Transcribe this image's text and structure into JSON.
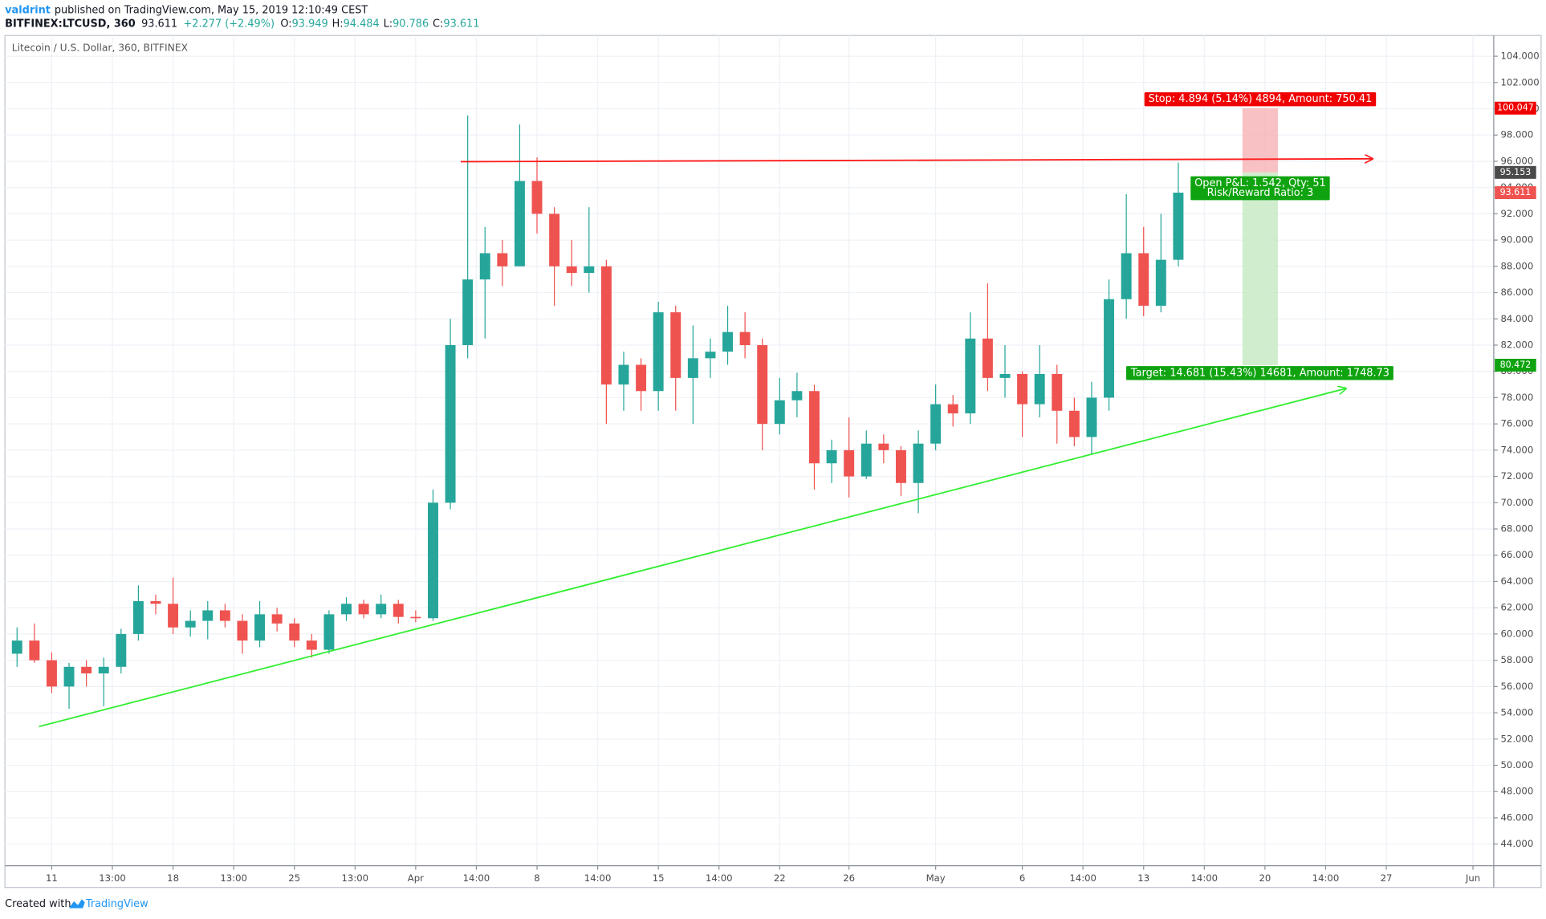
{
  "header": {
    "author": "valdrint",
    "published": "published on TradingView.com, May 15, 2019 12:10:49 CEST",
    "symbol": "BITFINEX:LTCUSD, 360",
    "last": "93.611",
    "change": "+2.277 (+2.49%)",
    "ohlc": [
      {
        "label": "O:",
        "value": "93.949"
      },
      {
        "label": "H:",
        "value": "94.484"
      },
      {
        "label": "L:",
        "value": "90.786"
      },
      {
        "label": "C:",
        "value": "93.611"
      }
    ]
  },
  "footer": {
    "created": "Created with",
    "brand": "TradingView"
  },
  "chart_data": {
    "type": "candlestick",
    "title": "Litecoin / U.S. Dollar, 360, BITFINEX",
    "colors": {
      "up": "#26a69a",
      "down": "#ef5350"
    },
    "x": [
      9,
      10,
      11,
      12,
      13,
      14,
      15,
      16,
      17,
      18,
      19,
      20,
      21,
      22,
      23,
      24,
      25,
      26,
      27,
      28,
      29,
      30,
      31,
      32,
      33,
      34,
      35,
      36,
      37,
      38,
      39,
      40,
      41,
      42,
      43,
      44,
      45,
      46,
      47,
      48,
      49,
      50,
      51,
      52,
      53,
      54,
      55,
      56,
      57,
      58,
      59,
      60,
      61,
      62,
      63,
      64,
      65,
      66,
      67,
      68,
      69,
      70,
      71,
      72,
      73,
      74,
      75,
      76
    ],
    "candles": {
      "open": [
        58.5,
        59.5,
        58,
        56,
        57.5,
        57,
        57.5,
        60,
        62.5,
        62.3,
        60.5,
        61,
        61.8,
        61,
        59.5,
        61.5,
        60.8,
        59.5,
        58.8,
        61.5,
        62.3,
        61.5,
        62.3,
        61.3,
        61.2,
        70,
        82,
        87,
        89,
        88,
        94.5,
        92,
        88,
        87.5,
        88,
        79,
        80.5,
        78.5,
        84.5,
        79.5,
        81,
        81.5,
        83,
        82,
        76,
        77.8,
        78.5,
        73,
        74,
        72,
        74.5,
        74,
        71.5,
        74.5,
        77.5,
        76.8,
        82.5,
        79.5,
        79.8,
        77.5,
        79.8,
        77,
        75,
        78,
        85.5,
        89,
        85,
        88.5
      ],
      "high": [
        60.5,
        60.8,
        58.6,
        57.8,
        58,
        58.2,
        60.4,
        63.7,
        63,
        64.3,
        61.8,
        62.5,
        62.3,
        61.5,
        62.5,
        62,
        61.2,
        60,
        61.8,
        62.8,
        62.6,
        63,
        62.6,
        61.8,
        71,
        84,
        99.5,
        91,
        90,
        98.8,
        96.3,
        92.5,
        90,
        92.5,
        88.5,
        81.5,
        81,
        85.3,
        85,
        83.5,
        82.5,
        85,
        84.5,
        82.5,
        79.5,
        79.9,
        79,
        74.8,
        76.5,
        75.5,
        75.2,
        74.3,
        75.5,
        79,
        78.2,
        84.5,
        86.7,
        82,
        80,
        82,
        80.5,
        78,
        79.2,
        87,
        93.5,
        91,
        92,
        95.9
      ],
      "low": [
        57.5,
        57.8,
        55.5,
        54.3,
        56,
        54.5,
        57,
        59.5,
        61.5,
        60,
        59.8,
        59.6,
        60.5,
        58.5,
        59,
        60.2,
        59,
        58.2,
        58.5,
        61,
        61.2,
        61.2,
        60.8,
        60.9,
        61,
        69.5,
        81,
        82.5,
        86.5,
        88,
        90.5,
        85,
        86.5,
        86,
        76,
        77,
        77,
        77,
        77,
        76,
        79.5,
        80.5,
        81,
        74,
        75.2,
        76.5,
        71,
        71.5,
        70.4,
        71.8,
        73,
        70.5,
        69.2,
        74,
        75.8,
        76,
        78.5,
        78,
        75,
        76.5,
        74.5,
        74.3,
        73.7,
        77,
        84,
        84.2,
        84.5,
        88
      ],
      "close": [
        59.5,
        58,
        56,
        57.5,
        57,
        57.5,
        60,
        62.5,
        62.3,
        60.5,
        61,
        61.8,
        61,
        59.5,
        61.5,
        60.8,
        59.5,
        58.8,
        61.5,
        62.3,
        61.5,
        62.3,
        61.3,
        61.2,
        70,
        82,
        87,
        89,
        88,
        94.5,
        92,
        88,
        87.5,
        88,
        79,
        80.5,
        78.5,
        84.5,
        79.5,
        81,
        81.5,
        83,
        82,
        76,
        77.8,
        78.5,
        73,
        74,
        72,
        74.5,
        74,
        71.5,
        74.5,
        77.5,
        76.8,
        82.5,
        79.5,
        79.8,
        77.5,
        79.8,
        77,
        75,
        78,
        85.5,
        89,
        85,
        88.5,
        93.611
      ]
    },
    "xlim": [
      8.3,
      94.2
    ],
    "ylim": [
      42.35,
      105.58
    ],
    "xticks": [
      {
        "value": 11,
        "label": "11"
      },
      {
        "value": 14.5,
        "label": "13:00"
      },
      {
        "value": 18,
        "label": "18"
      },
      {
        "value": 21.5,
        "label": "13:00"
      },
      {
        "value": 25,
        "label": "25"
      },
      {
        "value": 28.5,
        "label": "13:00"
      },
      {
        "value": 32,
        "label": "Apr"
      },
      {
        "value": 35.5,
        "label": "14:00"
      },
      {
        "value": 39,
        "label": "8"
      },
      {
        "value": 42.5,
        "label": "14:00"
      },
      {
        "value": 46,
        "label": "15"
      },
      {
        "value": 49.5,
        "label": "14:00"
      },
      {
        "value": 53,
        "label": "22"
      },
      {
        "value": 57,
        "label": "26"
      },
      {
        "value": 62,
        "label": "May"
      },
      {
        "value": 67,
        "label": "6"
      },
      {
        "value": 70.5,
        "label": "14:00"
      },
      {
        "value": 74,
        "label": "13"
      },
      {
        "value": 77.5,
        "label": "14:00"
      },
      {
        "value": 81,
        "label": "20"
      },
      {
        "value": 84.5,
        "label": "14:00"
      },
      {
        "value": 88,
        "label": "27"
      },
      {
        "value": 93,
        "label": "Jun"
      }
    ],
    "yticks": [
      {
        "value": 44,
        "label": "44.000"
      },
      {
        "value": 46,
        "label": "46.000"
      },
      {
        "value": 48,
        "label": "48.000"
      },
      {
        "value": 50,
        "label": "50.000"
      },
      {
        "value": 52,
        "label": "52.000"
      },
      {
        "value": 54,
        "label": "54.000"
      },
      {
        "value": 56,
        "label": "56.000"
      },
      {
        "value": 58,
        "label": "58.000"
      },
      {
        "value": 60,
        "label": "60.000"
      },
      {
        "value": 62,
        "label": "62.000"
      },
      {
        "value": 64,
        "label": "64.000"
      },
      {
        "value": 66,
        "label": "66.000"
      },
      {
        "value": 68,
        "label": "68.000"
      },
      {
        "value": 70,
        "label": "70.000"
      },
      {
        "value": 72,
        "label": "72.000"
      },
      {
        "value": 74,
        "label": "74.000"
      },
      {
        "value": 76,
        "label": "76.000"
      },
      {
        "value": 78,
        "label": "78.000"
      },
      {
        "value": 80,
        "label": "80.000"
      },
      {
        "value": 82,
        "label": "82.000"
      },
      {
        "value": 84,
        "label": "84.000"
      },
      {
        "value": 86,
        "label": "86.000"
      },
      {
        "value": 88,
        "label": "88.000"
      },
      {
        "value": 90,
        "label": "90.000"
      },
      {
        "value": 92,
        "label": "92.000"
      },
      {
        "value": 94,
        "label": "94.000"
      },
      {
        "value": 96,
        "label": "96.000"
      },
      {
        "value": 98,
        "label": "98.000"
      },
      {
        "value": 100,
        "label": "100.000"
      },
      {
        "value": 102,
        "label": "102.000"
      },
      {
        "value": 104,
        "label": "104.000"
      }
    ],
    "grid": true,
    "drawings": [
      {
        "color": "#ff1a1a",
        "x": [
          34.6,
          87.2
        ],
        "y": [
          95.97,
          96.19
        ]
      },
      {
        "color": "#33ee33",
        "x": [
          10.26,
          85.67
        ],
        "y": [
          52.95,
          78.7
        ]
      }
    ],
    "position": {
      "x": [
        79.7,
        81.75
      ],
      "stop": 100.047,
      "entry": 95.153,
      "target": 80.472,
      "stop_color": "#f7b6b8",
      "target_color": "#c8ebc6",
      "stop_label": "Stop: 4.894 (5.14%) 4894, Amount: 750.41",
      "pnl_label": "Open P&L: 1.542, Qty: 51",
      "rr_label": "Risk/Reward Ratio: 3",
      "target_label": "Target: 14.681 (15.43%) 14681, Amount: 1748.73"
    },
    "price_badges": [
      {
        "value": 100.047,
        "color": "#f00000"
      },
      {
        "value": 95.153,
        "color": "#4a4a4a"
      },
      {
        "value": 93.611,
        "color": "#ef5350"
      },
      {
        "value": 80.472,
        "color": "#0fa30f"
      }
    ]
  }
}
